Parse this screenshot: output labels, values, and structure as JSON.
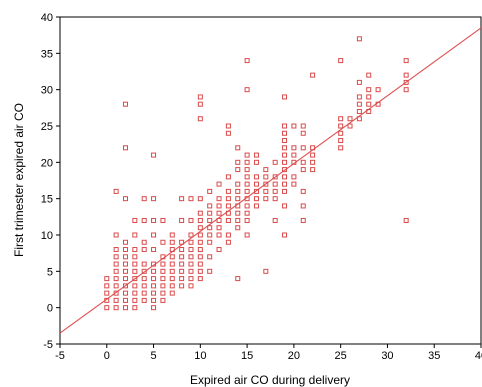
{
  "chart_data": {
    "type": "scatter",
    "title": "",
    "xlabel": "Expired air CO during delivery",
    "ylabel": "First trimester expired air CO",
    "xlim": [
      -5,
      40
    ],
    "ylim": [
      -5,
      40
    ],
    "xticks": [
      -5,
      0,
      5,
      10,
      15,
      20,
      25,
      30,
      35,
      40
    ],
    "yticks": [
      -5,
      0,
      5,
      10,
      15,
      20,
      25,
      30,
      35,
      40
    ],
    "marker": "square",
    "point_color": "#d94a4a",
    "fit_line": {
      "color": "#e05050",
      "from": [
        -5,
        -3.5
      ],
      "to": [
        40,
        38.5
      ]
    },
    "points": [
      [
        0,
        0
      ],
      [
        0,
        1
      ],
      [
        0,
        2
      ],
      [
        0,
        3
      ],
      [
        0,
        4
      ],
      [
        1,
        0
      ],
      [
        1,
        1
      ],
      [
        1,
        2
      ],
      [
        1,
        3
      ],
      [
        1,
        4
      ],
      [
        1,
        5
      ],
      [
        1,
        6
      ],
      [
        1,
        7
      ],
      [
        1,
        8
      ],
      [
        1,
        10
      ],
      [
        1,
        16
      ],
      [
        2,
        0
      ],
      [
        2,
        1
      ],
      [
        2,
        2
      ],
      [
        2,
        3
      ],
      [
        2,
        4
      ],
      [
        2,
        5
      ],
      [
        2,
        6
      ],
      [
        2,
        7
      ],
      [
        2,
        8
      ],
      [
        2,
        9
      ],
      [
        2,
        15
      ],
      [
        2,
        22
      ],
      [
        2,
        28
      ],
      [
        3,
        0
      ],
      [
        3,
        1
      ],
      [
        3,
        2
      ],
      [
        3,
        3
      ],
      [
        3,
        4
      ],
      [
        3,
        5
      ],
      [
        3,
        6
      ],
      [
        3,
        7
      ],
      [
        3,
        8
      ],
      [
        3,
        10
      ],
      [
        3,
        12
      ],
      [
        4,
        1
      ],
      [
        4,
        2
      ],
      [
        4,
        3
      ],
      [
        4,
        4
      ],
      [
        4,
        5
      ],
      [
        4,
        6
      ],
      [
        4,
        8
      ],
      [
        4,
        9
      ],
      [
        4,
        12
      ],
      [
        4,
        15
      ],
      [
        5,
        0
      ],
      [
        5,
        1
      ],
      [
        5,
        2
      ],
      [
        5,
        3
      ],
      [
        5,
        4
      ],
      [
        5,
        5
      ],
      [
        5,
        6
      ],
      [
        5,
        8
      ],
      [
        5,
        10
      ],
      [
        5,
        12
      ],
      [
        5,
        15
      ],
      [
        5,
        21
      ],
      [
        6,
        1
      ],
      [
        6,
        2
      ],
      [
        6,
        3
      ],
      [
        6,
        4
      ],
      [
        6,
        5
      ],
      [
        6,
        6
      ],
      [
        6,
        7
      ],
      [
        6,
        9
      ],
      [
        6,
        12
      ],
      [
        7,
        2
      ],
      [
        7,
        3
      ],
      [
        7,
        4
      ],
      [
        7,
        5
      ],
      [
        7,
        6
      ],
      [
        7,
        7
      ],
      [
        7,
        8
      ],
      [
        7,
        9
      ],
      [
        7,
        10
      ],
      [
        8,
        3
      ],
      [
        8,
        4
      ],
      [
        8,
        5
      ],
      [
        8,
        6
      ],
      [
        8,
        7
      ],
      [
        8,
        8
      ],
      [
        8,
        9
      ],
      [
        8,
        12
      ],
      [
        8,
        15
      ],
      [
        9,
        3
      ],
      [
        9,
        4
      ],
      [
        9,
        5
      ],
      [
        9,
        6
      ],
      [
        9,
        7
      ],
      [
        9,
        8
      ],
      [
        9,
        9
      ],
      [
        9,
        10
      ],
      [
        9,
        12
      ],
      [
        9,
        15
      ],
      [
        10,
        4
      ],
      [
        10,
        5
      ],
      [
        10,
        6
      ],
      [
        10,
        7
      ],
      [
        10,
        8
      ],
      [
        10,
        9
      ],
      [
        10,
        10
      ],
      [
        10,
        11
      ],
      [
        10,
        12
      ],
      [
        10,
        13
      ],
      [
        10,
        15
      ],
      [
        10,
        26
      ],
      [
        10,
        28
      ],
      [
        10,
        29
      ],
      [
        11,
        5
      ],
      [
        11,
        7
      ],
      [
        11,
        9
      ],
      [
        11,
        10
      ],
      [
        11,
        11
      ],
      [
        11,
        12
      ],
      [
        11,
        13
      ],
      [
        11,
        14
      ],
      [
        11,
        16
      ],
      [
        12,
        8
      ],
      [
        12,
        10
      ],
      [
        12,
        11
      ],
      [
        12,
        12
      ],
      [
        12,
        13
      ],
      [
        12,
        14
      ],
      [
        12,
        15
      ],
      [
        12,
        17
      ],
      [
        13,
        9
      ],
      [
        13,
        10
      ],
      [
        13,
        12
      ],
      [
        13,
        13
      ],
      [
        13,
        14
      ],
      [
        13,
        15
      ],
      [
        13,
        16
      ],
      [
        13,
        18
      ],
      [
        13,
        24
      ],
      [
        13,
        25
      ],
      [
        14,
        4
      ],
      [
        14,
        11
      ],
      [
        14,
        12
      ],
      [
        14,
        13
      ],
      [
        14,
        14
      ],
      [
        14,
        15
      ],
      [
        14,
        16
      ],
      [
        14,
        17
      ],
      [
        14,
        19
      ],
      [
        14,
        20
      ],
      [
        14,
        22
      ],
      [
        15,
        10
      ],
      [
        15,
        12
      ],
      [
        15,
        13
      ],
      [
        15,
        14
      ],
      [
        15,
        15
      ],
      [
        15,
        16
      ],
      [
        15,
        17
      ],
      [
        15,
        18
      ],
      [
        15,
        19
      ],
      [
        15,
        20
      ],
      [
        15,
        21
      ],
      [
        15,
        30
      ],
      [
        15,
        34
      ],
      [
        16,
        14
      ],
      [
        16,
        15
      ],
      [
        16,
        16
      ],
      [
        16,
        17
      ],
      [
        16,
        18
      ],
      [
        16,
        20
      ],
      [
        16,
        21
      ],
      [
        17,
        5
      ],
      [
        17,
        15
      ],
      [
        17,
        16
      ],
      [
        17,
        17
      ],
      [
        17,
        18
      ],
      [
        17,
        19
      ],
      [
        18,
        12
      ],
      [
        18,
        15
      ],
      [
        18,
        16
      ],
      [
        18,
        17
      ],
      [
        18,
        18
      ],
      [
        18,
        20
      ],
      [
        19,
        10
      ],
      [
        19,
        14
      ],
      [
        19,
        16
      ],
      [
        19,
        17
      ],
      [
        19,
        18
      ],
      [
        19,
        19
      ],
      [
        19,
        20
      ],
      [
        19,
        21
      ],
      [
        19,
        22
      ],
      [
        19,
        23
      ],
      [
        19,
        24
      ],
      [
        19,
        25
      ],
      [
        19,
        29
      ],
      [
        20,
        17
      ],
      [
        20,
        18
      ],
      [
        20,
        20
      ],
      [
        20,
        21
      ],
      [
        20,
        22
      ],
      [
        20,
        25
      ],
      [
        21,
        12
      ],
      [
        21,
        14
      ],
      [
        21,
        16
      ],
      [
        21,
        19
      ],
      [
        21,
        20
      ],
      [
        21,
        22
      ],
      [
        21,
        24
      ],
      [
        21,
        25
      ],
      [
        22,
        19
      ],
      [
        22,
        20
      ],
      [
        22,
        21
      ],
      [
        22,
        22
      ],
      [
        22,
        32
      ],
      [
        25,
        22
      ],
      [
        25,
        23
      ],
      [
        25,
        24
      ],
      [
        25,
        25
      ],
      [
        25,
        26
      ],
      [
        25,
        34
      ],
      [
        26,
        25
      ],
      [
        26,
        26
      ],
      [
        27,
        26
      ],
      [
        27,
        27
      ],
      [
        27,
        28
      ],
      [
        27,
        29
      ],
      [
        27,
        31
      ],
      [
        27,
        37
      ],
      [
        28,
        27
      ],
      [
        28,
        28
      ],
      [
        28,
        29
      ],
      [
        28,
        30
      ],
      [
        28,
        32
      ],
      [
        29,
        28
      ],
      [
        29,
        30
      ],
      [
        32,
        12
      ],
      [
        32,
        30
      ],
      [
        32,
        31
      ],
      [
        32,
        32
      ],
      [
        32,
        34
      ]
    ]
  }
}
